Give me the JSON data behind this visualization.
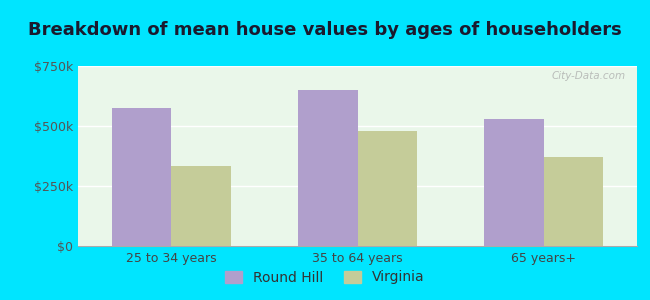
{
  "title": "Breakdown of mean house values by ages of householders",
  "categories": [
    "25 to 34 years",
    "35 to 64 years",
    "65 years+"
  ],
  "round_hill_values": [
    575000,
    650000,
    530000
  ],
  "virginia_values": [
    335000,
    480000,
    370000
  ],
  "round_hill_color": "#b09fcc",
  "virginia_color": "#c5cc99",
  "background_outer": "#00e5ff",
  "background_inner": "#eaf7ea",
  "ylim": [
    0,
    750000
  ],
  "yticks": [
    0,
    250000,
    500000,
    750000
  ],
  "ytick_labels": [
    "$0",
    "$250k",
    "$500k",
    "$750k"
  ],
  "legend_labels": [
    "Round Hill",
    "Virginia"
  ],
  "bar_width": 0.32,
  "title_fontsize": 13,
  "tick_fontsize": 9,
  "legend_fontsize": 10
}
